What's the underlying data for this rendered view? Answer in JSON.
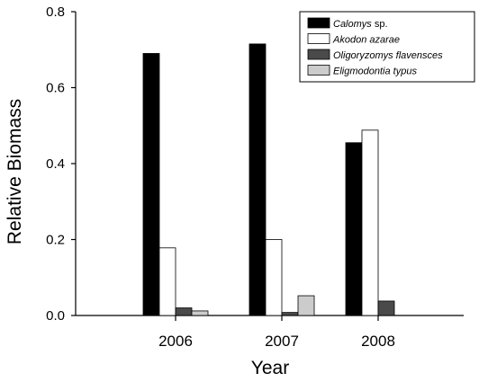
{
  "chart_data": {
    "type": "bar",
    "categories": [
      "2006",
      "2007",
      "2008"
    ],
    "series": [
      {
        "name": "Calomys",
        "suffix": " sp.",
        "color": "#000000",
        "values": [
          0.69,
          0.715,
          0.455
        ]
      },
      {
        "name": "Akodon azarae",
        "suffix": "",
        "color": "#ffffff",
        "values": [
          0.178,
          0.2,
          0.488
        ]
      },
      {
        "name": "Oligoryzomys flavensces",
        "suffix": "",
        "color": "#4a4a4a",
        "values": [
          0.02,
          0.008,
          0.038
        ]
      },
      {
        "name": "Eligmodontia typus",
        "suffix": "",
        "color": "#cccccc",
        "values": [
          0.012,
          0.052,
          0.0
        ]
      }
    ],
    "xlabel": "Year",
    "ylabel": "Relative Biomass",
    "ylim": [
      0,
      0.8
    ],
    "yticks": [
      "0.0",
      "0.2",
      "0.4",
      "0.6",
      "0.8"
    ],
    "legend_position": "top-right",
    "grid": false
  }
}
